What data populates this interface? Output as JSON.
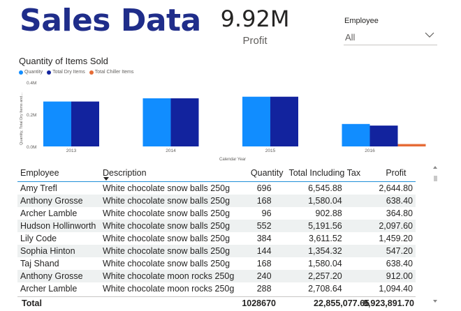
{
  "header": {
    "title": "Sales Data"
  },
  "kpi": {
    "value": "9.92M",
    "label": "Profit"
  },
  "slicer": {
    "title": "Employee",
    "value": "All",
    "icon": "chevron-down-icon"
  },
  "chart_data": {
    "type": "bar",
    "title": "Quantity of Items Sold",
    "xlabel": "Calendar Year",
    "ylabel": "Quantity, Total Dry Items and...",
    "categories": [
      "2013",
      "2014",
      "2015",
      "2016"
    ],
    "ylim": [
      0,
      0.4
    ],
    "yticks": [
      "0.0M",
      "0.2M",
      "0.4M"
    ],
    "legend_position": "top-left",
    "grid": false,
    "series": [
      {
        "name": "Quantity",
        "color": "#118dff",
        "values": [
          0.28,
          0.3,
          0.31,
          0.14
        ]
      },
      {
        "name": "Total Dry Items",
        "color": "#12239e",
        "values": [
          0.28,
          0.3,
          0.31,
          0.13
        ]
      },
      {
        "name": "Total Chiller Items",
        "color": "#e66c37",
        "values": [
          0,
          0,
          0,
          0.015
        ]
      }
    ]
  },
  "table": {
    "columns": [
      "Employee",
      "Description",
      "Quantity",
      "Total Including Tax",
      "Profit"
    ],
    "rows": [
      [
        "Amy Trefl",
        "White chocolate snow balls 250g",
        "696",
        "6,545.88",
        "2,644.80"
      ],
      [
        "Anthony Grosse",
        "White chocolate snow balls 250g",
        "168",
        "1,580.04",
        "638.40"
      ],
      [
        "Archer Lamble",
        "White chocolate snow balls 250g",
        "96",
        "902.88",
        "364.80"
      ],
      [
        "Hudson Hollinworth",
        "White chocolate snow balls 250g",
        "552",
        "5,191.56",
        "2,097.60"
      ],
      [
        "Lily Code",
        "White chocolate snow balls 250g",
        "384",
        "3,611.52",
        "1,459.20"
      ],
      [
        "Sophia Hinton",
        "White chocolate snow balls 250g",
        "144",
        "1,354.32",
        "547.20"
      ],
      [
        "Taj Shand",
        "White chocolate snow balls 250g",
        "168",
        "1,580.04",
        "638.40"
      ],
      [
        "Anthony Grosse",
        "White chocolate moon rocks 250g",
        "240",
        "2,257.20",
        "912.00"
      ],
      [
        "Archer Lamble",
        "White chocolate moon rocks 250g",
        "288",
        "2,708.64",
        "1,094.40"
      ]
    ],
    "total": {
      "label": "Total",
      "quantity": "1028670",
      "total_tax": "22,855,077.65",
      "profit": "9,923,891.70"
    }
  }
}
